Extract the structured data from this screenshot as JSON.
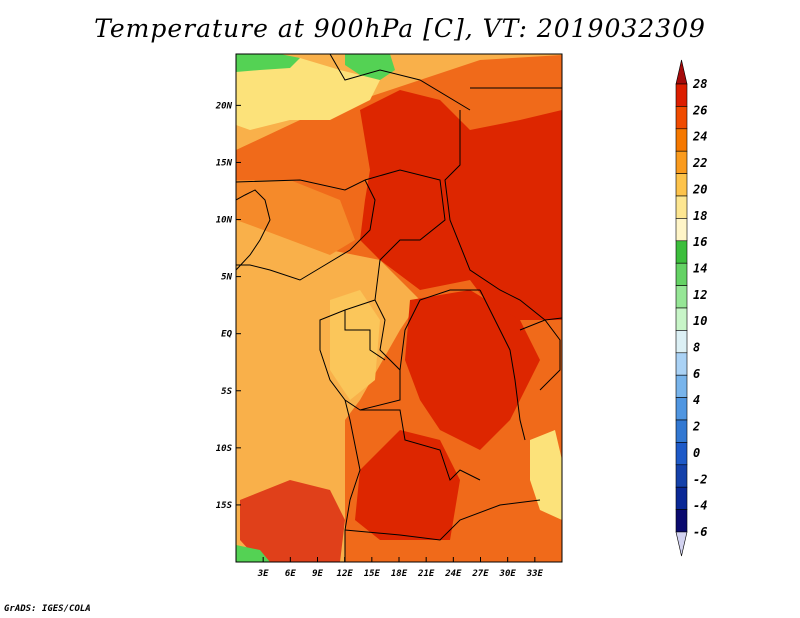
{
  "title": "Temperature at 900hPa [C], VT: 2019032309",
  "footer": "GrADS: IGES/COLA",
  "map": {
    "lon_range": [
      0,
      36
    ],
    "lat_range": [
      -20,
      24.5
    ],
    "x_ticks": [
      "3E",
      "6E",
      "9E",
      "12E",
      "15E",
      "18E",
      "21E",
      "24E",
      "27E",
      "30E",
      "33E"
    ],
    "y_ticks": [
      "20N",
      "15N",
      "10N",
      "5N",
      "EQ",
      "5S",
      "10S",
      "15S"
    ]
  },
  "colorbar": {
    "labels": [
      "28",
      "26",
      "24",
      "22",
      "20",
      "18",
      "16",
      "14",
      "12",
      "10",
      "8",
      "6",
      "4",
      "2",
      "0",
      "-2",
      "-4",
      "-6"
    ],
    "colors": [
      "#a50a0a",
      "#dc1e00",
      "#f04b00",
      "#f57800",
      "#fa9b1e",
      "#fdc34b",
      "#fde691",
      "#fff5c8",
      "#3cbe3c",
      "#64d264",
      "#96e696",
      "#c8f5c8",
      "#dcf0f5",
      "#aad2f5",
      "#78b4eb",
      "#5096e1",
      "#3278d2",
      "#1e5ac8",
      "#1441aa",
      "#0a2896",
      "#0a0a6e",
      "#d2d2f0"
    ]
  },
  "colors": {
    "sea_orange": "#f9b04a",
    "land_red": "#dd2600",
    "land_orange": "#ef5a10",
    "light_yellow": "#fce27a",
    "green": "#54d254",
    "border": "#000000"
  }
}
